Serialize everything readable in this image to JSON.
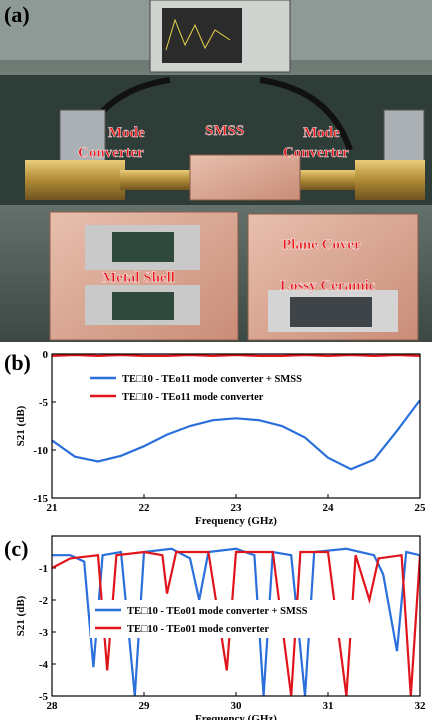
{
  "panel_labels": [
    "(a)",
    "(b)",
    "(c)"
  ],
  "photo": {
    "labels": [
      "Mode",
      "Converter",
      "SMSS",
      "Mode",
      "Converter",
      "Metal Shell",
      "Plane Cover",
      "Lossy Ceramic"
    ]
  },
  "chart_data": [
    {
      "type": "line",
      "x_label": "Frequency (GHz)",
      "y_label": "S21 (dB)",
      "x": [
        21,
        21.25,
        21.5,
        21.75,
        22,
        22.25,
        22.5,
        22.75,
        23,
        23.25,
        23.5,
        23.75,
        24,
        24.25,
        24.5,
        24.75,
        25
      ],
      "series": [
        {
          "name": "TE□10 - TEo11 mode converter + SMSS",
          "color": "#2a6fdb",
          "values": [
            -9,
            -10.7,
            -11.2,
            -10.6,
            -9.6,
            -8.4,
            -7.5,
            -6.9,
            -6.7,
            -6.9,
            -7.5,
            -8.7,
            -10.8,
            -12,
            -11,
            -8,
            -4.8
          ]
        },
        {
          "name": "TE□10 - TEo11 mode converter",
          "color": "#e0151b",
          "values": [
            -0.2,
            -0.1,
            -0.2,
            -0.1,
            -0.2,
            -0.2,
            -0.1,
            -0.2,
            -0.1,
            -0.2,
            -0.2,
            -0.1,
            -0.2,
            -0.1,
            -0.2,
            -0.1,
            -0.2
          ]
        }
      ],
      "xlim": [
        21,
        25
      ],
      "xticks": [
        21,
        22,
        23,
        24,
        25
      ],
      "ylim": [
        -15,
        0
      ],
      "yticks": [
        0,
        -5,
        -10,
        -15
      ]
    },
    {
      "type": "line",
      "x_label": "Frequency (GHz)",
      "y_label": "S21 (dB)",
      "series": [
        {
          "name": "TE□10 - TEo01 mode converter + SMSS",
          "color": "#2a6fdb",
          "x": [
            28,
            28.2,
            28.35,
            28.45,
            28.55,
            28.75,
            28.9,
            29.0,
            29.3,
            29.5,
            29.6,
            29.7,
            30.0,
            30.2,
            30.3,
            30.4,
            30.6,
            30.75,
            30.85,
            31.2,
            31.5,
            31.6,
            31.75,
            31.85,
            32
          ],
          "values": [
            -0.6,
            -0.6,
            -0.8,
            -4.1,
            -0.6,
            -0.5,
            -5,
            -0.5,
            -0.4,
            -0.7,
            -2,
            -0.5,
            -0.4,
            -0.6,
            -5,
            -0.5,
            -0.6,
            -5,
            -0.5,
            -0.4,
            -0.6,
            -1.2,
            -3.6,
            -0.5,
            -0.6
          ]
        },
        {
          "name": "TE□10 - TEo01 mode converter",
          "color": "#e0151b",
          "x": [
            28,
            28.2,
            28.5,
            28.6,
            28.7,
            29.0,
            29.2,
            29.25,
            29.35,
            29.7,
            29.9,
            30.0,
            30.4,
            30.6,
            30.7,
            31.0,
            31.2,
            31.3,
            31.45,
            31.55,
            31.8,
            31.9,
            32
          ],
          "values": [
            -1,
            -0.7,
            -0.6,
            -4.2,
            -0.6,
            -0.5,
            -0.6,
            -1.8,
            -0.5,
            -0.5,
            -4.2,
            -0.5,
            -0.5,
            -5,
            -0.5,
            -0.5,
            -5,
            -0.6,
            -2,
            -0.7,
            -0.6,
            -5,
            -0.6
          ]
        }
      ],
      "xlim": [
        28,
        32
      ],
      "xticks": [
        28,
        29,
        30,
        31,
        32
      ],
      "ylim": [
        -5,
        0
      ],
      "yticks": [
        -1,
        -2,
        -3,
        -4,
        -5
      ]
    }
  ]
}
